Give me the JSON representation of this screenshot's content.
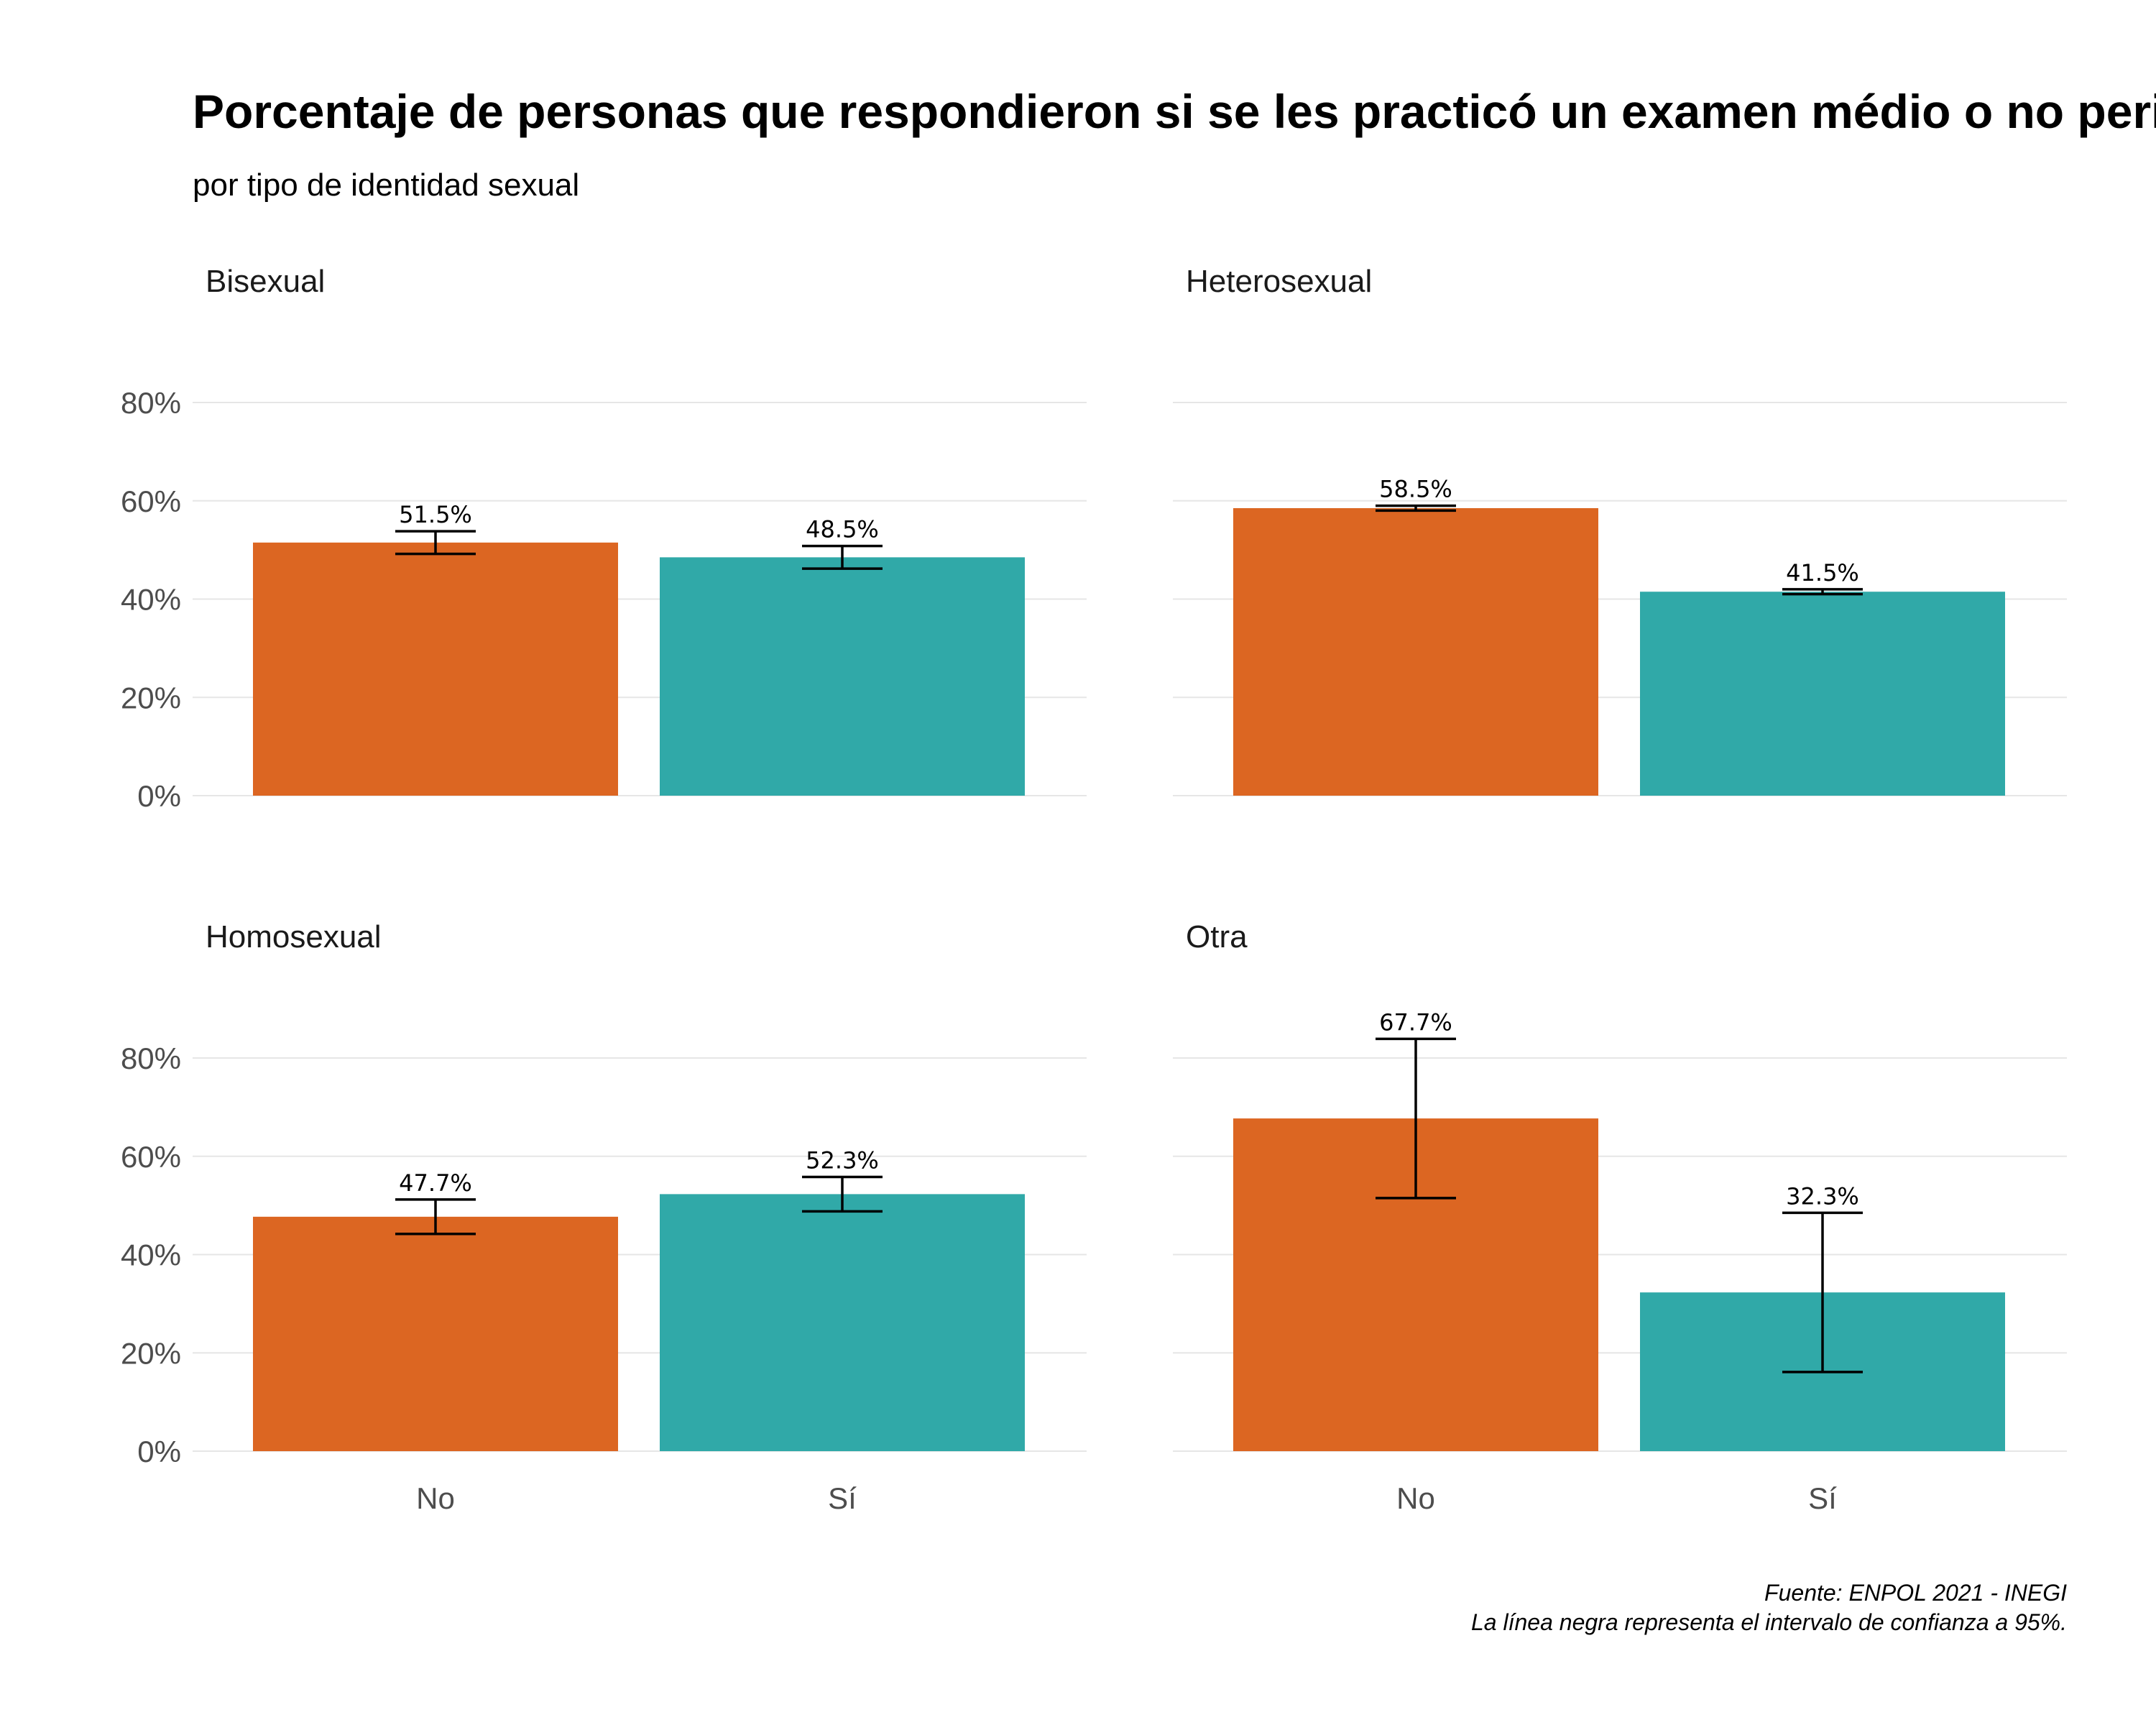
{
  "chart_data": {
    "type": "bar",
    "title": "Porcentaje de personas que respondieron si se les practicó un examen médio o no periódicamente",
    "subtitle": "por tipo de identidad sexual",
    "categories": [
      "No",
      "Sí"
    ],
    "ylim": [
      0,
      90
    ],
    "yticks": [
      0,
      20,
      40,
      60,
      80
    ],
    "ytick_labels": [
      "0%",
      "20%",
      "40%",
      "60%",
      "80%"
    ],
    "grid": true,
    "legend": "none",
    "colors": {
      "No": "#dc6622",
      "Sí": "#30a9a8"
    },
    "facets": [
      {
        "name": "Bisexual",
        "values": [
          51.5,
          48.5
        ],
        "labels": [
          "51.5%",
          "48.5%"
        ],
        "ci_low": [
          49.2,
          46.2
        ],
        "ci_high": [
          53.8,
          50.8
        ]
      },
      {
        "name": "Heterosexual",
        "values": [
          58.5,
          41.5
        ],
        "labels": [
          "58.5%",
          "41.5%"
        ],
        "ci_low": [
          58.0,
          41.0
        ],
        "ci_high": [
          59.0,
          42.0
        ]
      },
      {
        "name": "Homosexual",
        "values": [
          47.7,
          52.3
        ],
        "labels": [
          "47.7%",
          "52.3%"
        ],
        "ci_low": [
          44.2,
          48.8
        ],
        "ci_high": [
          51.2,
          55.8
        ]
      },
      {
        "name": "Otra",
        "values": [
          67.7,
          32.3
        ],
        "labels": [
          "67.7%",
          "32.3%"
        ],
        "ci_low": [
          51.5,
          16.1
        ],
        "ci_high": [
          83.9,
          48.5
        ]
      }
    ],
    "caption": [
      "Fuente: ENPOL 2021 - INEGI",
      "La línea negra representa el intervalo de confianza a 95%."
    ]
  }
}
